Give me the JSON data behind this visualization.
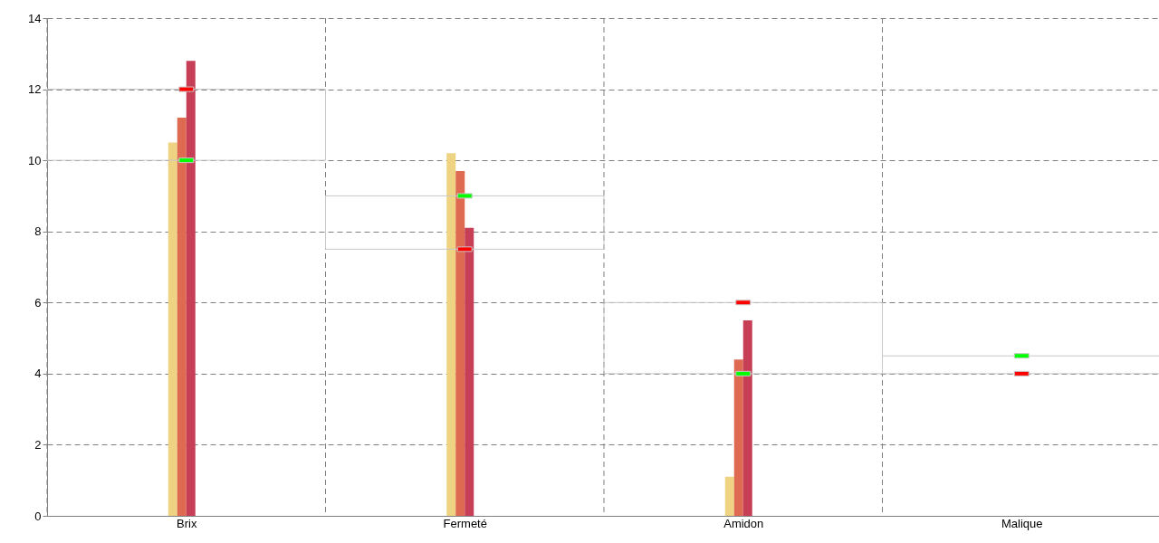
{
  "chart_data": {
    "type": "bar",
    "categories": [
      "Brix",
      "Fermeté",
      "Amidon",
      "Malique"
    ],
    "ylim": [
      0,
      14
    ],
    "yticks": [
      0,
      2,
      4,
      6,
      8,
      10,
      12,
      14
    ],
    "grid": true,
    "series": [
      {
        "color": "#edd382",
        "values": [
          10.5,
          10.2,
          1.1,
          0
        ]
      },
      {
        "color": "#de6a52",
        "values": [
          11.2,
          9.7,
          4.4,
          0
        ]
      },
      {
        "color": "#c63f57",
        "values": [
          12.8,
          8.1,
          5.5,
          0
        ]
      },
      {
        "color": "#7b2f4e",
        "values": [
          0,
          0,
          0,
          0
        ]
      },
      {
        "color": "#c8c8c8",
        "base": [
          10,
          7.5,
          4,
          4
        ],
        "values": [
          2,
          1.5,
          2,
          0.5
        ]
      },
      {
        "type": "scatter",
        "color": "#ff0000",
        "values": [
          12,
          7.5,
          6,
          4
        ]
      },
      {
        "type": "scatter",
        "color": "#00ff00",
        "values": [
          10,
          9,
          4,
          4.5
        ]
      }
    ]
  }
}
